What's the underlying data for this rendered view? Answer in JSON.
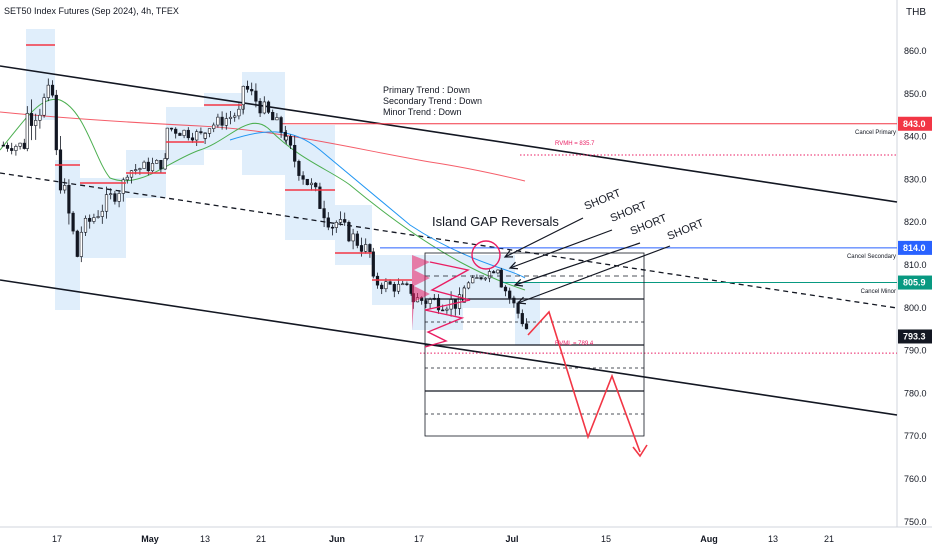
{
  "header": {
    "title": "SET50 Index Futures (Sep 2024), 4h, TFEX"
  },
  "chart_data": {
    "type": "candlestick",
    "currency": "THB",
    "ylim": [
      750,
      866
    ],
    "y_ticks": [
      {
        "value": 860,
        "label": "860.0"
      },
      {
        "value": 850,
        "label": "850.0"
      },
      {
        "value": 840,
        "label": "840.0"
      },
      {
        "value": 830,
        "label": "830.0"
      },
      {
        "value": 820,
        "label": "820.0"
      },
      {
        "value": 810,
        "label": "810.0"
      },
      {
        "value": 800,
        "label": "800.0"
      },
      {
        "value": 790,
        "label": "790.0"
      },
      {
        "value": 780,
        "label": "780.0"
      },
      {
        "value": 770,
        "label": "770.0"
      },
      {
        "value": 760,
        "label": "760.0"
      },
      {
        "value": 750,
        "label": "750.0"
      }
    ],
    "x_ticks": [
      "17",
      "May",
      "13",
      "21",
      "Jun",
      "17",
      "Jul",
      "15",
      "Aug",
      "13",
      "21"
    ],
    "price_tags": [
      {
        "value": 843.0,
        "label": "843.0",
        "color": "#f23645",
        "note": "Cancel Primary"
      },
      {
        "value": 814.0,
        "label": "814.0",
        "color": "#2962ff",
        "note": "Cancel Secondary"
      },
      {
        "value": 805.9,
        "label": "805.9",
        "color": "#089981",
        "note": "Cancel Minor"
      },
      {
        "value": 793.3,
        "label": "793.3",
        "color": "#131722",
        "note": ""
      }
    ],
    "dotted_levels": [
      {
        "value": 835.7,
        "label": "RVMH = 835.7"
      },
      {
        "value": 789.4,
        "label": "RVML = 789.4"
      }
    ],
    "trend_text": [
      "Primary Trend : Down",
      "Secondary Trend : Down",
      "Minor Trend : Down"
    ],
    "annotations": {
      "island": "Island GAP Reversals",
      "short_labels": [
        "SHORT",
        "SHORT",
        "SHORT",
        "SHORT"
      ]
    },
    "grid": false
  },
  "colors": {
    "up": "#000000",
    "down": "#000000",
    "box": "#d6e8fa",
    "red": "#f23645",
    "pink": "#e91e63",
    "green": "#4caf50",
    "blue": "#2962ff",
    "ma_red": "#f23645",
    "ma_green": "#4caf50",
    "ma_blue": "#2196f3"
  }
}
